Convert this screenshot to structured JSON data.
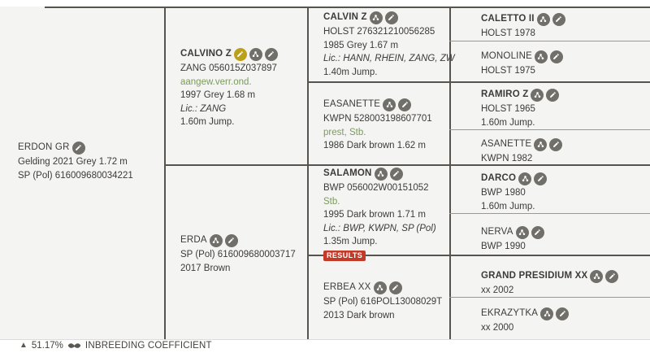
{
  "colors": {
    "background": "#f4f4f2",
    "line_dark": "#57544e",
    "line_light": "#9b9894",
    "text": "#3d3b38",
    "accent_green": "#7d9b5e",
    "badge_red": "#c23a28",
    "icon_grey": "#716f6a",
    "icon_yellow": "#bda019"
  },
  "entries": {
    "erdon_gr": {
      "name": "ERDON GR",
      "bold": false,
      "icons": [
        "edit"
      ],
      "lines": [
        {
          "text": "Gelding 2021 Grey 1.72 m",
          "style": "normal"
        },
        {
          "text": "SP (Pol) 616009680034221",
          "style": "normal"
        }
      ]
    },
    "calvino_z": {
      "name": "CALVINO Z",
      "bold": true,
      "icons": [
        "edit-yellow",
        "offspring",
        "edit"
      ],
      "lines": [
        {
          "text": "ZANG 056015Z037897",
          "style": "normal"
        },
        {
          "text": "aangew.verr.ond.",
          "style": "link"
        },
        {
          "text": "1997 Grey 1.68 m",
          "style": "normal"
        },
        {
          "text": "Lic.: ZANG",
          "style": "italic"
        },
        {
          "text": "1.60m Jump.",
          "style": "normal"
        }
      ]
    },
    "erda": {
      "name": "ERDA",
      "bold": false,
      "icons": [
        "offspring",
        "edit"
      ],
      "lines": [
        {
          "text": "SP (Pol) 616009680003717",
          "style": "normal"
        },
        {
          "text": "2017 Brown",
          "style": "normal"
        }
      ]
    },
    "calvin_z": {
      "name": "CALVIN Z",
      "bold": true,
      "icons": [
        "offspring",
        "edit"
      ],
      "lines": [
        {
          "text": "HOLST 276321210056285",
          "style": "normal"
        },
        {
          "text": "1985 Grey 1.67 m",
          "style": "normal"
        },
        {
          "text": "Lic.: HANN, RHEIN, ZANG, ZW",
          "style": "italic"
        },
        {
          "text": "1.40m Jump.",
          "style": "normal"
        }
      ]
    },
    "easanette": {
      "name": "EASANETTE",
      "bold": false,
      "icons": [
        "offspring",
        "edit"
      ],
      "lines": [
        {
          "text": "KWPN 528003198607701",
          "style": "normal"
        },
        {
          "text": "prest, Stb.",
          "style": "link"
        },
        {
          "text": "1986 Dark brown 1.62 m",
          "style": "normal"
        }
      ]
    },
    "salamon": {
      "name": "SALAMON",
      "bold": true,
      "icons": [
        "offspring",
        "edit"
      ],
      "badge": "RESULTS",
      "lines": [
        {
          "text": "BWP 056002W00151052",
          "style": "normal"
        },
        {
          "text": "Stb.",
          "style": "link"
        },
        {
          "text": "1995 Dark brown 1.71 m",
          "style": "normal"
        },
        {
          "text": "Lic.: BWP, KWPN, SP (Pol)",
          "style": "italic"
        },
        {
          "text": "1.35m Jump.",
          "style": "normal"
        }
      ]
    },
    "erbea_xx": {
      "name": "ERBEA XX",
      "bold": false,
      "icons": [
        "offspring",
        "edit"
      ],
      "lines": [
        {
          "text": "SP (Pol) 616POL13008029T",
          "style": "normal"
        },
        {
          "text": "2013 Dark brown",
          "style": "normal"
        }
      ]
    },
    "caletto_ii": {
      "name": "CALETTO II",
      "bold": true,
      "icons": [
        "offspring",
        "edit"
      ],
      "lines": [
        {
          "text": "HOLST 1978",
          "style": "normal"
        }
      ]
    },
    "monoline": {
      "name": "MONOLINE",
      "bold": false,
      "icons": [
        "offspring",
        "edit"
      ],
      "lines": [
        {
          "text": "HOLST 1975",
          "style": "normal"
        }
      ]
    },
    "ramiro_z": {
      "name": "RAMIRO Z",
      "bold": true,
      "icons": [
        "offspring",
        "edit"
      ],
      "lines": [
        {
          "text": "HOLST 1965",
          "style": "normal"
        },
        {
          "text": "1.60m Jump.",
          "style": "normal"
        }
      ]
    },
    "asanette": {
      "name": "ASANETTE",
      "bold": false,
      "icons": [
        "offspring",
        "edit"
      ],
      "lines": [
        {
          "text": "KWPN 1982",
          "style": "normal"
        }
      ]
    },
    "darco": {
      "name": "DARCO",
      "bold": true,
      "icons": [
        "offspring",
        "edit"
      ],
      "lines": [
        {
          "text": "BWP 1980",
          "style": "normal"
        },
        {
          "text": "1.60m Jump.",
          "style": "normal"
        }
      ]
    },
    "nerva": {
      "name": "NERVA",
      "bold": false,
      "icons": [
        "offspring",
        "edit"
      ],
      "lines": [
        {
          "text": "BWP 1990",
          "style": "normal"
        }
      ]
    },
    "grand_presidium_xx": {
      "name": "GRAND PRESIDIUM XX",
      "bold": true,
      "icons": [
        "offspring",
        "edit"
      ],
      "lines": [
        {
          "text": "xx 2002",
          "style": "normal"
        }
      ]
    },
    "ekrazytka": {
      "name": "EKRAZYTKA",
      "bold": false,
      "icons": [
        "offspring",
        "edit"
      ],
      "lines": [
        {
          "text": "xx 2000",
          "style": "normal"
        }
      ]
    }
  },
  "footer": {
    "blood_value": "51.17%",
    "coefficient_label": "INBREEDING COEFFICIENT"
  }
}
